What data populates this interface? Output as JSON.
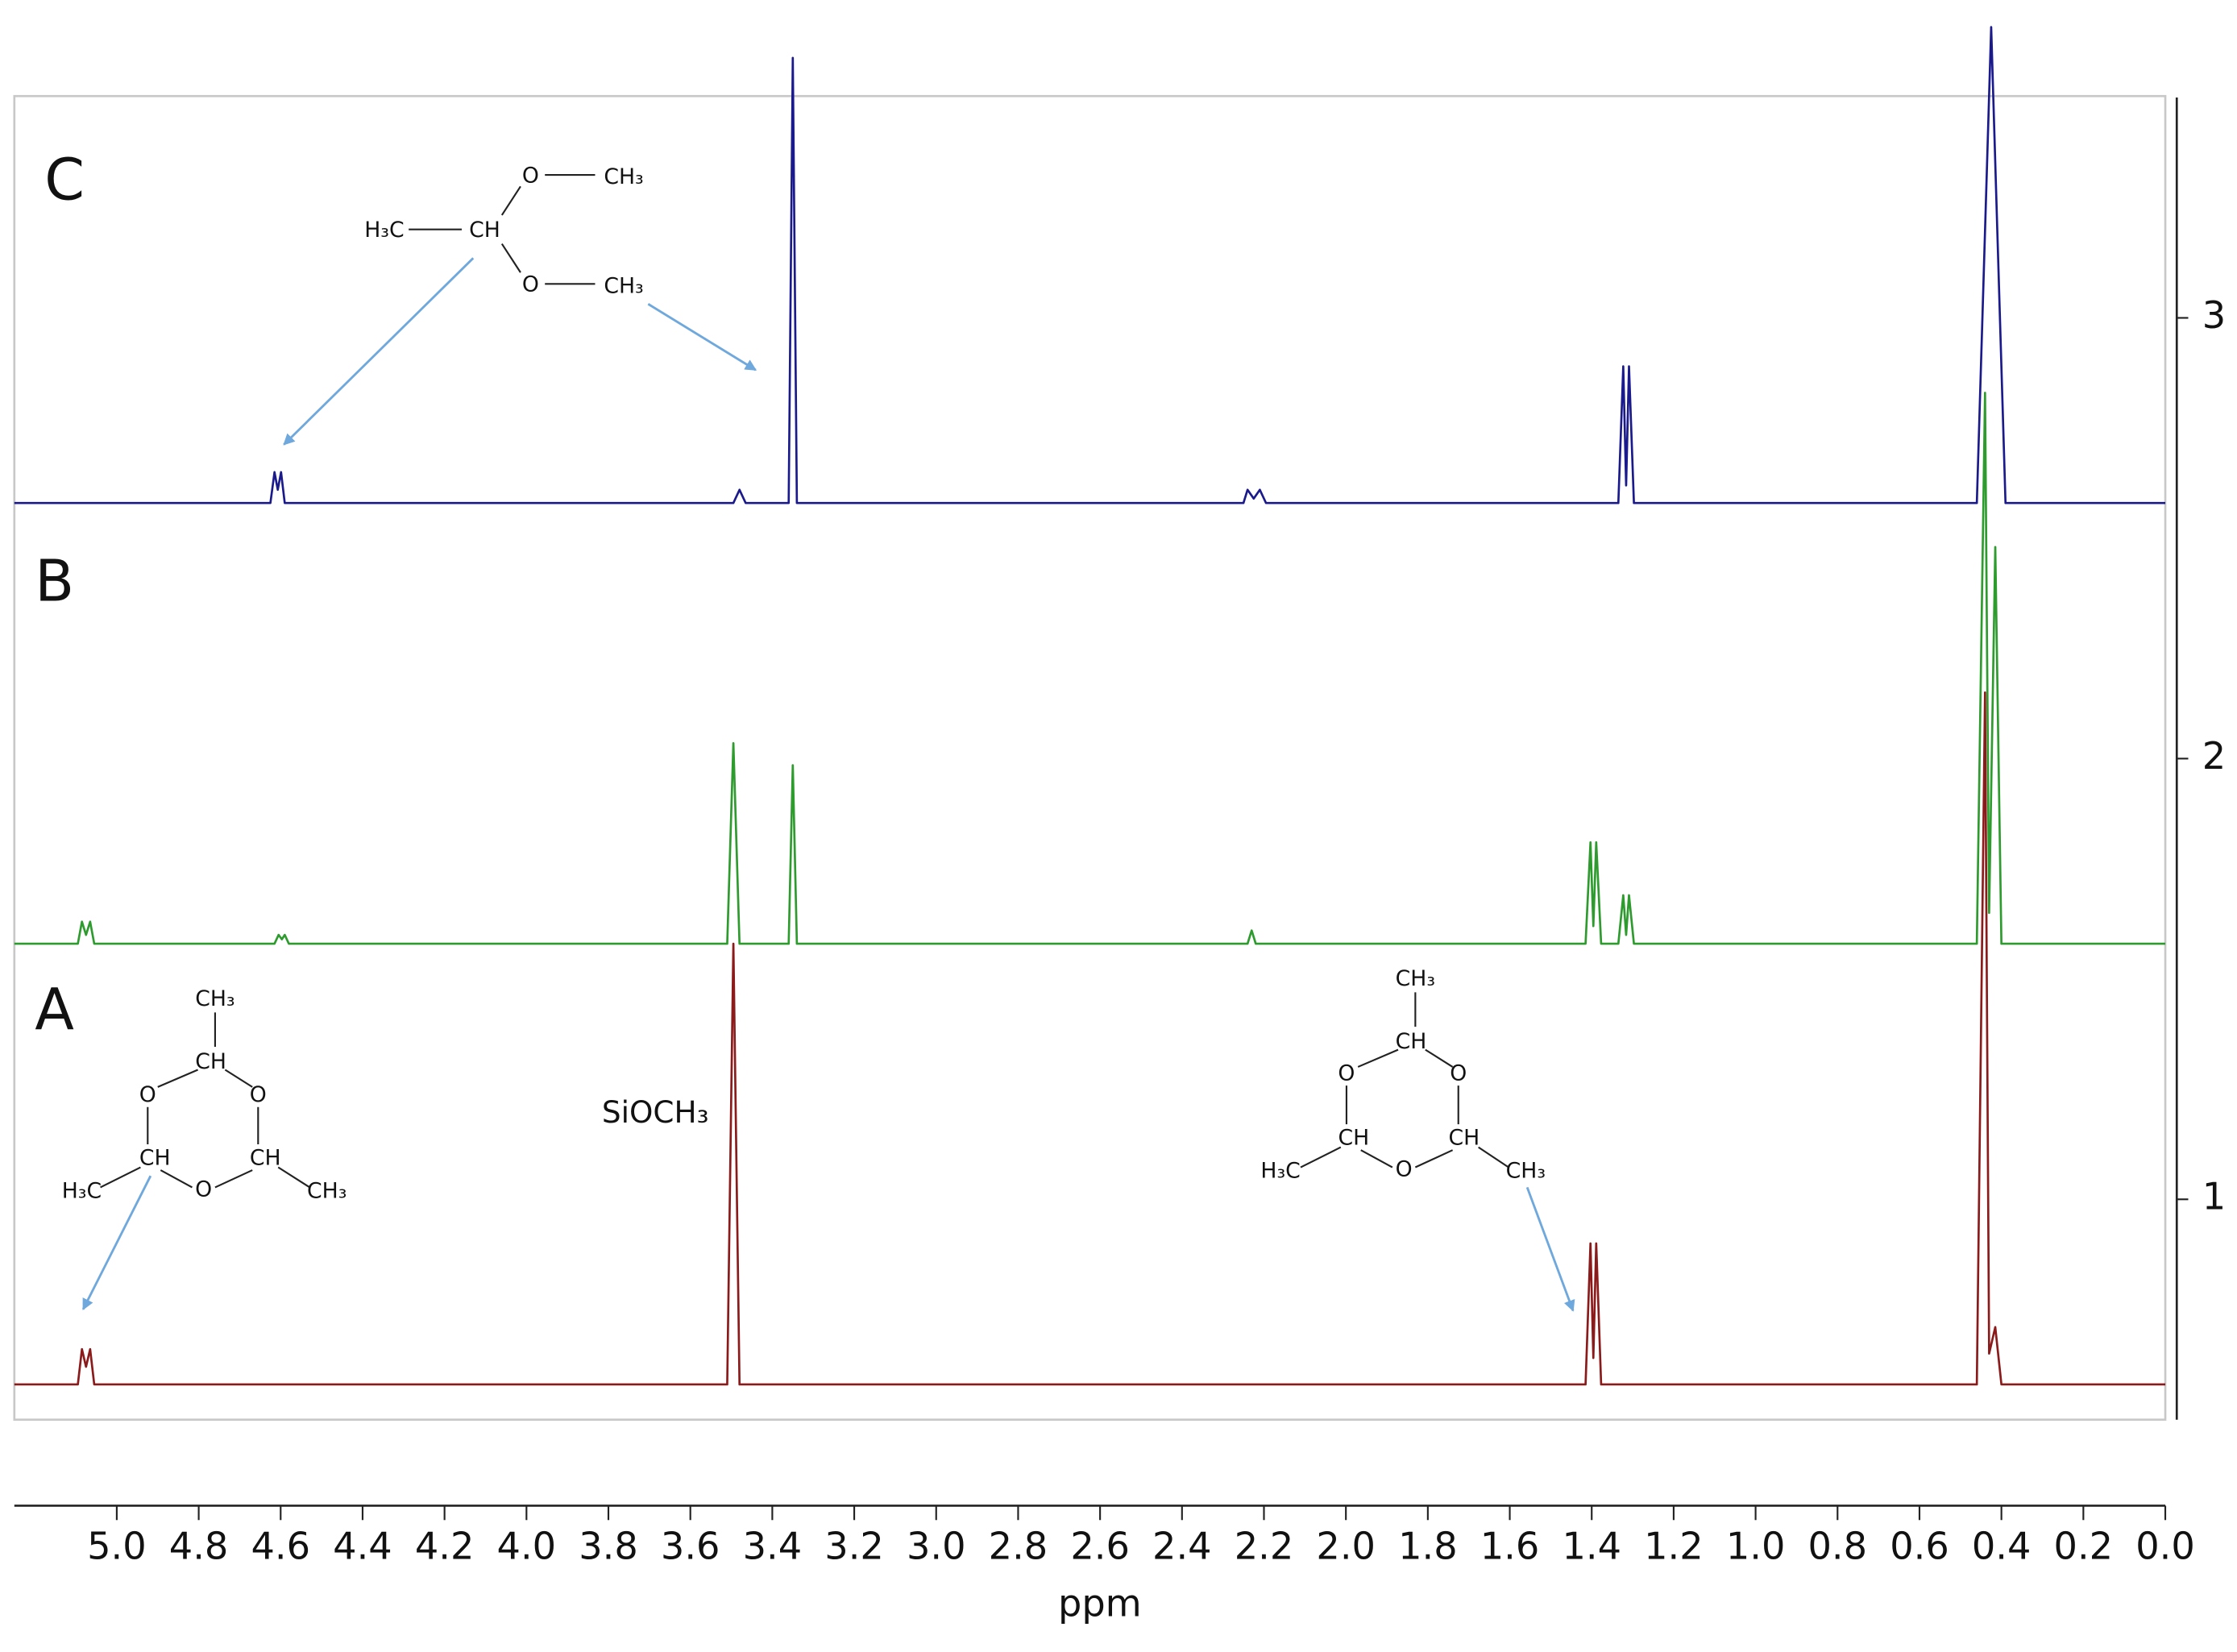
{
  "chart_data": {
    "type": "line",
    "x_label": "ppm",
    "xlim": [
      5.25,
      0
    ],
    "xticks": [
      {
        "value": 5.0,
        "label": "5.0"
      },
      {
        "value": 4.8,
        "label": "4.8"
      },
      {
        "value": 4.6,
        "label": "4.6"
      },
      {
        "value": 4.4,
        "label": "4.4"
      },
      {
        "value": 4.2,
        "label": "4.2"
      },
      {
        "value": 4.0,
        "label": "4.0"
      },
      {
        "value": 3.8,
        "label": "3.8"
      },
      {
        "value": 3.6,
        "label": "3.6"
      },
      {
        "value": 3.4,
        "label": "3.4"
      },
      {
        "value": 3.2,
        "label": "3.2"
      },
      {
        "value": 3.0,
        "label": "3.0"
      },
      {
        "value": 2.8,
        "label": "2.8"
      },
      {
        "value": 2.6,
        "label": "2.6"
      },
      {
        "value": 2.4,
        "label": "2.4"
      },
      {
        "value": 2.2,
        "label": "2.2"
      },
      {
        "value": 2.0,
        "label": "2.0"
      },
      {
        "value": 1.8,
        "label": "1.8"
      },
      {
        "value": 1.6,
        "label": "1.6"
      },
      {
        "value": 1.4,
        "label": "1.4"
      },
      {
        "value": 1.2,
        "label": "1.2"
      },
      {
        "value": 1.0,
        "label": "1.0"
      },
      {
        "value": 0.8,
        "label": "0.8"
      },
      {
        "value": 0.6,
        "label": "0.6"
      },
      {
        "value": 0.4,
        "label": "0.4"
      },
      {
        "value": 0.2,
        "label": "0.2"
      },
      {
        "value": 0,
        "label": "0.0"
      }
    ],
    "ylim": [
      0.5,
      3.5
    ],
    "yticks": [
      1,
      2,
      3
    ],
    "series": [
      {
        "name": "A",
        "color": "#8b1a1a",
        "x": [
          5.25,
          5.095,
          5.085,
          5.075,
          5.065,
          5.055,
          3.51,
          3.495,
          3.48,
          1.415,
          1.403,
          1.396,
          1.389,
          1.377,
          0.46,
          0.44,
          0.43,
          0.415,
          0.4,
          0
        ],
        "values": [
          0.58,
          0.58,
          0.66,
          0.62,
          0.66,
          0.58,
          0.58,
          1.58,
          0.58,
          0.58,
          0.9,
          0.64,
          0.9,
          0.58,
          0.58,
          2.15,
          0.65,
          0.71,
          0.58,
          0.58
        ]
      },
      {
        "name": "B",
        "color": "#2e9b2e",
        "x": [
          5.25,
          5.095,
          5.085,
          5.075,
          5.065,
          5.055,
          4.615,
          4.605,
          4.597,
          4.59,
          4.58,
          3.51,
          3.495,
          3.48,
          3.36,
          3.35,
          3.34,
          2.24,
          2.23,
          2.22,
          1.415,
          1.403,
          1.396,
          1.389,
          1.377,
          1.335,
          1.323,
          1.316,
          1.309,
          1.297,
          0.46,
          0.44,
          0.43,
          0.415,
          0.4,
          0
        ],
        "values": [
          1.58,
          1.58,
          1.63,
          1.6,
          1.63,
          1.58,
          1.58,
          1.6,
          1.59,
          1.6,
          1.58,
          1.58,
          2.035,
          1.58,
          1.58,
          1.985,
          1.58,
          1.58,
          1.61,
          1.58,
          1.58,
          1.81,
          1.62,
          1.81,
          1.58,
          1.58,
          1.69,
          1.6,
          1.69,
          1.58,
          1.58,
          2.83,
          1.65,
          2.48,
          1.58,
          1.58
        ]
      },
      {
        "name": "C",
        "color": "#1a1a8c",
        "x": [
          5.25,
          4.625,
          4.615,
          4.607,
          4.599,
          4.59,
          3.495,
          3.48,
          3.465,
          3.36,
          3.35,
          3.34,
          2.25,
          2.24,
          2.225,
          2.21,
          2.195,
          1.335,
          1.323,
          1.316,
          1.309,
          1.297,
          0.46,
          0.425,
          0.39,
          0
        ],
        "values": [
          2.58,
          2.58,
          2.65,
          2.61,
          2.65,
          2.58,
          2.58,
          2.61,
          2.58,
          2.58,
          3.59,
          2.58,
          2.58,
          2.61,
          2.59,
          2.61,
          2.58,
          2.58,
          2.89,
          2.62,
          2.89,
          2.58,
          2.58,
          3.66,
          2.58,
          2.58
        ]
      }
    ],
    "annotations": [
      "SiOCH₃"
    ],
    "structures": [
      {
        "labels": [
          "O",
          "CH₃",
          "H₃C",
          "CH",
          "O",
          "CH₃"
        ]
      },
      {
        "labels": [
          "CH₃",
          "CH",
          "O",
          "O",
          "CH",
          "CH",
          "H₃C",
          "O",
          "CH₃"
        ]
      },
      {
        "labels": [
          "CH₃",
          "CH",
          "O",
          "O",
          "CH",
          "CH",
          "H₃C",
          "O",
          "CH₃"
        ]
      }
    ]
  }
}
